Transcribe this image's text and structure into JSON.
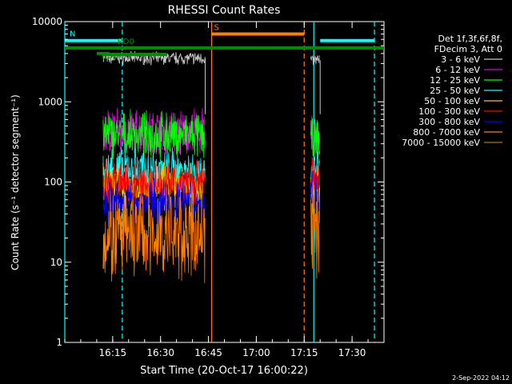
{
  "chart_data": {
    "type": "line",
    "title": "RHESSI Count Rates",
    "xlabel": "Start Time (20-Oct-17 16:00:22)",
    "ylabel": "Count Rate (s⁻¹ detector segment⁻¹)",
    "yscale": "log",
    "ylim": [
      1,
      10000
    ],
    "xlim_min": [
      0,
      100
    ],
    "x_ticks": [
      {
        "min": 15,
        "label": "16:15"
      },
      {
        "min": 30,
        "label": "16:30"
      },
      {
        "min": 45,
        "label": "16:45"
      },
      {
        "min": 60,
        "label": "17:00"
      },
      {
        "min": 75,
        "label": "17:15"
      },
      {
        "min": 90,
        "label": "17:30"
      }
    ],
    "y_ticks": [
      {
        "v": 1,
        "label": "1"
      },
      {
        "v": 10,
        "label": "10"
      },
      {
        "v": 100,
        "label": "100"
      },
      {
        "v": 1000,
        "label": "1000"
      },
      {
        "v": 10000,
        "label": "10000"
      }
    ],
    "legend_header": [
      "Det 1f,3f,6f,8f,",
      "FDecim 3, Att 0"
    ],
    "grid": false,
    "legend_position": "right",
    "series": [
      {
        "name": "3 - 6 keV",
        "color": "#c8c8c8",
        "segments": [
          {
            "start": 12,
            "end": 44,
            "level": 3500
          },
          {
            "start": 77,
            "end": 80,
            "level": 3300
          }
        ]
      },
      {
        "name": "6 - 12 keV",
        "color": "#e100e1",
        "segments": [
          {
            "start": 12,
            "end": 44,
            "level": 420
          },
          {
            "start": 77,
            "end": 80,
            "level": 380
          }
        ]
      },
      {
        "name": "12 - 25 keV",
        "color": "#00ff00",
        "segments": [
          {
            "start": 12,
            "end": 44,
            "level": 380
          },
          {
            "start": 77,
            "end": 80,
            "level": 320
          }
        ]
      },
      {
        "name": "25 - 50 keV",
        "color": "#00ffff",
        "segments": [
          {
            "start": 12,
            "end": 44,
            "level": 140
          },
          {
            "start": 77,
            "end": 80,
            "level": 120
          }
        ]
      },
      {
        "name": "50 - 100 keV",
        "color": "#ffc800",
        "segments": [
          {
            "start": 12,
            "end": 44,
            "level": 90
          },
          {
            "start": 77,
            "end": 80,
            "level": 80
          }
        ]
      },
      {
        "name": "100 - 300 keV",
        "color": "#ff0000",
        "segments": [
          {
            "start": 12,
            "end": 44,
            "level": 95
          },
          {
            "start": 77,
            "end": 80,
            "level": 105
          }
        ]
      },
      {
        "name": "300 - 800 keV",
        "color": "#0000ff",
        "segments": [
          {
            "start": 12,
            "end": 44,
            "level": 55
          },
          {
            "start": 77,
            "end": 80,
            "level": 75
          }
        ]
      },
      {
        "name": "800 - 7000 keV",
        "color": "#ff8000",
        "segments": [
          {
            "start": 12,
            "end": 44,
            "level": 22
          },
          {
            "start": 77,
            "end": 80,
            "level": 28
          }
        ]
      },
      {
        "name": "7000 - 15000 keV",
        "color": "#a08000",
        "segments": []
      }
    ],
    "annotations": [
      {
        "label": "N",
        "color": "#00ffff",
        "bars": [
          [
            0,
            18
          ],
          [
            80,
            97
          ]
        ],
        "level": 5800
      },
      {
        "label": "RD0",
        "color": "#008c00",
        "bars": [
          [
            15,
            25
          ]
        ],
        "level": 4700
      },
      {
        "label": "RD0",
        "color": "#008c00",
        "bars": [
          [
            10,
            14
          ]
        ],
        "level": 4000
      },
      {
        "label": "S",
        "color": "#ff8000",
        "bars": [
          [
            46,
            75
          ]
        ],
        "level": 7000
      },
      {
        "label": "",
        "color": "#008c00",
        "bars": [
          [
            0,
            100
          ]
        ],
        "level": 4700
      },
      {
        "label": "",
        "color": "#008c00",
        "bars": [
          [
            12,
            32
          ]
        ],
        "level": 3900
      }
    ],
    "vlines": [
      {
        "min": 0,
        "color": "#00ffff",
        "style": "solid"
      },
      {
        "min": 18,
        "color": "#00ffff",
        "style": "dashed"
      },
      {
        "min": 46,
        "color": "#ff8000",
        "style": "solid"
      },
      {
        "min": 75,
        "color": "#ff8000",
        "style": "dashed"
      },
      {
        "min": 78,
        "color": "#00ffff",
        "style": "solid"
      },
      {
        "min": 97,
        "color": "#00ffff",
        "style": "dashed"
      }
    ]
  },
  "footer_date": "2-Sep-2022 04:12"
}
